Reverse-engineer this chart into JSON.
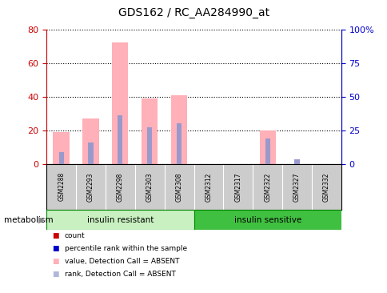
{
  "title": "GDS162 / RC_AA284990_at",
  "samples": [
    "GSM2288",
    "GSM2293",
    "GSM2298",
    "GSM2303",
    "GSM2308",
    "GSM2312",
    "GSM2317",
    "GSM2322",
    "GSM2327",
    "GSM2332"
  ],
  "pink_values": [
    19,
    27,
    72,
    39,
    41,
    0,
    0,
    20,
    0,
    0
  ],
  "blue_values": [
    7,
    13,
    29,
    22,
    24,
    0,
    0,
    15,
    3,
    0
  ],
  "left_ylim": [
    0,
    80
  ],
  "right_ylim": [
    0,
    100
  ],
  "left_yticks": [
    0,
    20,
    40,
    60,
    80
  ],
  "right_yticks": [
    0,
    25,
    50,
    75,
    100
  ],
  "right_yticklabels": [
    "0",
    "25",
    "50",
    "75",
    "100%"
  ],
  "group1_label": "insulin resistant",
  "group2_label": "insulin sensitive",
  "group_label": "metabolism",
  "legend_items": [
    {
      "color": "#cc0000",
      "label": "count"
    },
    {
      "color": "#0000cc",
      "label": "percentile rank within the sample"
    },
    {
      "color": "#ffb0b8",
      "label": "value, Detection Call = ABSENT"
    },
    {
      "color": "#b0b8d8",
      "label": "rank, Detection Call = ABSENT"
    }
  ],
  "bar_color_pink": "#ffb0b8",
  "bar_color_blue": "#9999cc",
  "tick_color_left": "#cc0000",
  "tick_color_right": "#0000cc",
  "plot_bg": "#ffffff",
  "group1_bg": "#c8f0c0",
  "group2_bg": "#40c040",
  "sample_bg": "#cccccc"
}
